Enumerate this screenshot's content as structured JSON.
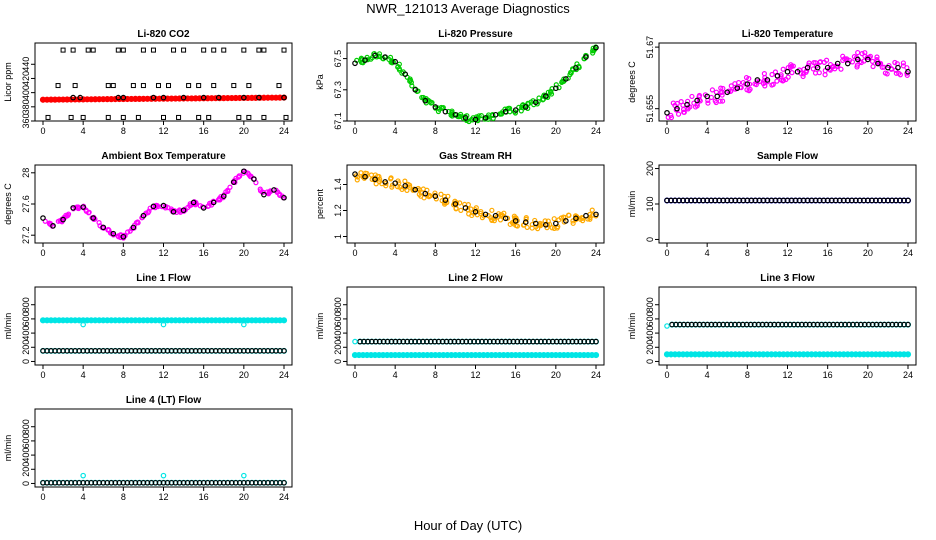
{
  "page": {
    "title": "NWR_121013  Average Diagnostics",
    "xlabel": "Hour of Day (UTC)"
  },
  "chart_data": [
    {
      "id": "co2",
      "type": "scatter",
      "title": "Li-820 CO2",
      "ylabel": "Licor ppm",
      "ylim": [
        360,
        470
      ],
      "xlim": [
        0,
        24
      ],
      "yticks": [
        360,
        380,
        400,
        420,
        440
      ],
      "xticks": [
        0,
        4,
        8,
        12,
        16,
        20,
        24
      ],
      "series": [
        {
          "name": "line-flow-trace",
          "color": "#ff0000",
          "marker": "dot",
          "x_range": [
            0,
            24
          ],
          "y_start": 390,
          "y_end": 393
        },
        {
          "name": "cal-high",
          "color": "#000000",
          "marker": "square",
          "x": [
            2,
            3,
            4.5,
            5,
            7.5,
            8,
            10,
            11,
            13,
            14,
            16,
            17,
            18,
            20,
            21.5,
            22,
            24
          ],
          "y": [
            460,
            460,
            460,
            460,
            460,
            460,
            460,
            460,
            460,
            460,
            460,
            460,
            460,
            460,
            460,
            460,
            460
          ]
        },
        {
          "name": "cal-mid",
          "color": "#000000",
          "marker": "square",
          "x": [
            1.5,
            3.2,
            6.5,
            7,
            9,
            10,
            11.5,
            12.5,
            14.5,
            15.5,
            17,
            19,
            20.5,
            23.5
          ],
          "y": [
            410,
            410,
            410,
            410,
            410,
            410,
            410,
            410,
            410,
            410,
            410,
            410,
            410,
            410
          ]
        },
        {
          "name": "cal-low",
          "color": "#000000",
          "marker": "square",
          "x": [
            0.5,
            2.8,
            4,
            6.5,
            8,
            9.5,
            12,
            13.5,
            15.5,
            16.5,
            19.5,
            20.5,
            22,
            24.2
          ],
          "y": [
            365,
            365,
            365,
            365,
            365,
            365,
            365,
            365,
            365,
            365,
            365,
            365,
            365,
            365
          ]
        },
        {
          "name": "ambient-avg",
          "color": "#000000",
          "marker": "circle",
          "x": [
            3,
            3.7,
            7.5,
            8,
            11,
            12,
            14,
            16,
            17.5,
            20,
            21.5,
            24
          ],
          "y": [
            393,
            393,
            393,
            393,
            393,
            393,
            393,
            393,
            393,
            393,
            393,
            393
          ]
        }
      ]
    },
    {
      "id": "pressure",
      "type": "scatter",
      "title": "Li-820 Pressure",
      "ylabel": "kPa",
      "ylim": [
        67.1,
        67.6
      ],
      "xlim": [
        0,
        24
      ],
      "yticks": [
        67.1,
        67.3,
        67.5
      ],
      "xticks": [
        0,
        4,
        8,
        12,
        16,
        20,
        24
      ],
      "series": [
        {
          "name": "avg",
          "color": "#000000",
          "color2": "#00cc00",
          "marker": "circle",
          "x": [
            0,
            1,
            2,
            3,
            4,
            5,
            6,
            7,
            8,
            9,
            10,
            11,
            12,
            13,
            14,
            15,
            16,
            17,
            18,
            19,
            20,
            21,
            22,
            23,
            24
          ],
          "y": [
            67.47,
            67.49,
            67.52,
            67.51,
            67.48,
            67.4,
            67.3,
            67.23,
            67.19,
            67.16,
            67.14,
            67.12,
            67.11,
            67.12,
            67.14,
            67.16,
            67.17,
            67.19,
            67.22,
            67.26,
            67.31,
            67.37,
            67.44,
            67.51,
            67.57
          ],
          "spread": 0.02
        }
      ]
    },
    {
      "id": "li820temp",
      "type": "scatter",
      "title": "Li-820 Temperature",
      "ylabel": "degrees C",
      "ylim": [
        51.652,
        51.671
      ],
      "xlim": [
        0,
        24
      ],
      "yticks": [
        51.655,
        51.67
      ],
      "xticks": [
        0,
        4,
        8,
        12,
        16,
        20,
        24
      ],
      "series": [
        {
          "name": "avg",
          "color": "#000000",
          "color2": "#ff00ff",
          "marker": "circle",
          "x": [
            0,
            1,
            2,
            3,
            4,
            5,
            6,
            7,
            8,
            9,
            10,
            11,
            12,
            13,
            14,
            15,
            16,
            17,
            18,
            19,
            20,
            21,
            22,
            23,
            24
          ],
          "y": [
            51.654,
            51.655,
            51.656,
            51.657,
            51.658,
            51.658,
            51.659,
            51.66,
            51.661,
            51.662,
            51.662,
            51.663,
            51.664,
            51.664,
            51.665,
            51.665,
            51.665,
            51.666,
            51.666,
            51.667,
            51.667,
            51.666,
            51.665,
            51.665,
            51.664
          ],
          "spread": 0.0018
        }
      ]
    },
    {
      "id": "boxtemp",
      "type": "scatter",
      "title": "Ambient Box Temperature",
      "ylabel": "degrees C",
      "ylim": [
        27.1,
        28.1
      ],
      "xlim": [
        0,
        24
      ],
      "yticks": [
        27.2,
        27.6,
        28.0
      ],
      "xticks": [
        0,
        4,
        8,
        12,
        16,
        20,
        24
      ],
      "series": [
        {
          "name": "avg",
          "color": "#000000",
          "color2": "#ff00ff",
          "marker": "circle",
          "x": [
            0,
            1,
            2,
            3,
            4,
            5,
            6,
            7,
            8,
            9,
            10,
            11,
            12,
            13,
            14,
            15,
            16,
            17,
            18,
            19,
            20,
            21,
            22,
            23,
            24
          ],
          "y": [
            27.42,
            27.32,
            27.4,
            27.55,
            27.56,
            27.42,
            27.3,
            27.22,
            27.18,
            27.3,
            27.45,
            27.57,
            27.58,
            27.5,
            27.52,
            27.62,
            27.55,
            27.62,
            27.7,
            27.88,
            28.02,
            27.92,
            27.72,
            27.78,
            27.68
          ],
          "spread": 0.02
        }
      ]
    },
    {
      "id": "rh",
      "type": "scatter",
      "title": "Gas Stream RH",
      "ylabel": "percent",
      "ylim": [
        0.95,
        1.55
      ],
      "xlim": [
        0,
        24
      ],
      "yticks": [
        1.0,
        1.2,
        1.4
      ],
      "xticks": [
        0,
        4,
        8,
        12,
        16,
        20,
        24
      ],
      "series": [
        {
          "name": "avg",
          "color": "#000000",
          "color2": "#ffaa00",
          "marker": "circle",
          "x": [
            0,
            1,
            2,
            3,
            4,
            5,
            6,
            7,
            8,
            9,
            10,
            11,
            12,
            13,
            14,
            15,
            16,
            17,
            18,
            19,
            20,
            21,
            22,
            23,
            24
          ],
          "y": [
            1.48,
            1.46,
            1.44,
            1.42,
            1.41,
            1.39,
            1.36,
            1.33,
            1.31,
            1.28,
            1.25,
            1.22,
            1.19,
            1.17,
            1.16,
            1.14,
            1.12,
            1.11,
            1.1,
            1.09,
            1.1,
            1.12,
            1.14,
            1.16,
            1.17
          ],
          "spread": 0.04
        }
      ]
    },
    {
      "id": "sampleflow",
      "type": "scatter",
      "title": "Sample Flow",
      "ylabel": "ml/min",
      "ylim": [
        -10,
        210
      ],
      "xlim": [
        0,
        24
      ],
      "yticks": [
        0,
        100,
        200
      ],
      "xticks": [
        0,
        4,
        8,
        12,
        16,
        20,
        24
      ],
      "series": [
        {
          "name": "avg",
          "color": "#000000",
          "color2": "#0000cc",
          "marker": "circle",
          "x_range": [
            0,
            24
          ],
          "y_start": 110,
          "y_end": 110
        }
      ]
    },
    {
      "id": "line1",
      "type": "scatter",
      "title": "Line 1 Flow",
      "ylabel": "ml/min",
      "ylim": [
        -50,
        1050
      ],
      "xlim": [
        0,
        24
      ],
      "yticks": [
        0,
        200,
        400,
        600,
        800
      ],
      "xticks": [
        0,
        4,
        8,
        12,
        16,
        20,
        24
      ],
      "series": [
        {
          "name": "cyan-band",
          "color": "#00e5e5",
          "marker": "dot",
          "x_range": [
            0,
            24
          ],
          "y_start": 580,
          "y_end": 580
        },
        {
          "name": "avg",
          "color": "#000000",
          "color2": "#00e5e5",
          "marker": "circle",
          "x_range": [
            0,
            24
          ],
          "y_start": 150,
          "y_end": 150
        },
        {
          "name": "dips",
          "color": "#00e5e5",
          "marker": "circle",
          "x": [
            4,
            12,
            20
          ],
          "y": [
            520,
            520,
            520
          ]
        }
      ]
    },
    {
      "id": "line2",
      "type": "scatter",
      "title": "Line 2 Flow",
      "ylabel": "ml/min",
      "ylim": [
        -50,
        1050
      ],
      "xlim": [
        0,
        24
      ],
      "yticks": [
        0,
        200,
        400,
        600,
        800
      ],
      "xticks": [
        0,
        4,
        8,
        12,
        16,
        20,
        24
      ],
      "series": [
        {
          "name": "cyan-band",
          "color": "#00e5e5",
          "marker": "dot",
          "x_range": [
            0,
            24
          ],
          "y_start": 90,
          "y_end": 90
        },
        {
          "name": "avg",
          "color": "#000000",
          "color2": "#00e5e5",
          "marker": "circle",
          "x_range": [
            0.5,
            24
          ],
          "y_start": 280,
          "y_end": 280
        },
        {
          "name": "start",
          "color": "#00e5e5",
          "marker": "circle",
          "x": [
            0
          ],
          "y": [
            280
          ]
        }
      ]
    },
    {
      "id": "line3",
      "type": "scatter",
      "title": "Line 3 Flow",
      "ylabel": "ml/min",
      "ylim": [
        -50,
        1050
      ],
      "xlim": [
        0,
        24
      ],
      "yticks": [
        0,
        200,
        400,
        600,
        800
      ],
      "xticks": [
        0,
        4,
        8,
        12,
        16,
        20,
        24
      ],
      "series": [
        {
          "name": "cyan-band",
          "color": "#00e5e5",
          "marker": "dot",
          "x_range": [
            0,
            24
          ],
          "y_start": 100,
          "y_end": 100
        },
        {
          "name": "avg",
          "color": "#000000",
          "color2": "#00e5e5",
          "marker": "circle",
          "x_range": [
            0.5,
            24
          ],
          "y_start": 520,
          "y_end": 520
        },
        {
          "name": "start",
          "color": "#00e5e5",
          "marker": "circle",
          "x": [
            0
          ],
          "y": [
            500
          ]
        }
      ]
    },
    {
      "id": "line4",
      "type": "scatter",
      "title": "Line 4 (LT) Flow",
      "ylabel": "ml/min",
      "ylim": [
        -50,
        1050
      ],
      "xlim": [
        0,
        24
      ],
      "yticks": [
        0,
        200,
        400,
        600,
        800
      ],
      "xticks": [
        0,
        4,
        8,
        12,
        16,
        20,
        24
      ],
      "series": [
        {
          "name": "avg",
          "color": "#000000",
          "color2": "#00e5e5",
          "marker": "circle",
          "x_range": [
            0,
            24
          ],
          "y_start": 10,
          "y_end": 10
        },
        {
          "name": "spikes",
          "color": "#00e5e5",
          "marker": "circle",
          "x": [
            4,
            12,
            20
          ],
          "y": [
            110,
            110,
            110
          ]
        }
      ]
    }
  ]
}
